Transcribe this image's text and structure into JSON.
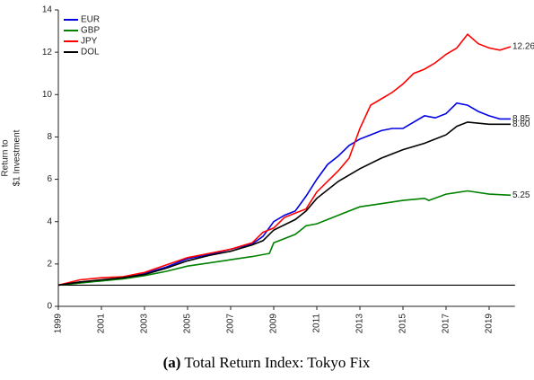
{
  "chart_data": {
    "type": "line",
    "ylabel": [
      "Return to",
      "$1 Investment"
    ],
    "caption_tag": "(a)",
    "caption": "Total Return Index: Tokyo Fix",
    "xlim": [
      1999,
      2020.2
    ],
    "xticks": [
      1999,
      2001,
      2003,
      2005,
      2007,
      2009,
      2011,
      2013,
      2015,
      2017,
      2019
    ],
    "ylim": [
      0,
      14
    ],
    "yticks": [
      0,
      2,
      4,
      6,
      8,
      10,
      12,
      14
    ],
    "hline": 1,
    "legend": "upper left",
    "series": [
      {
        "name": "EUR",
        "color": "#0000e6",
        "end_label": "8.85",
        "x": [
          1999,
          2000,
          2001,
          2002,
          2003,
          2004,
          2005,
          2006,
          2007,
          2008,
          2008.5,
          2009,
          2009.5,
          2010,
          2010.5,
          2011,
          2011.5,
          2012,
          2012.5,
          2013,
          2013.5,
          2014,
          2014.5,
          2015,
          2015.5,
          2016,
          2016.5,
          2017,
          2017.5,
          2018,
          2018.5,
          2019,
          2019.5,
          2020
        ],
        "values": [
          1.0,
          1.15,
          1.2,
          1.35,
          1.55,
          1.85,
          2.25,
          2.45,
          2.7,
          2.95,
          3.3,
          4.0,
          4.3,
          4.5,
          5.2,
          6.0,
          6.7,
          7.1,
          7.6,
          7.9,
          8.1,
          8.3,
          8.4,
          8.4,
          8.7,
          9.0,
          8.9,
          9.1,
          9.6,
          9.5,
          9.2,
          9.0,
          8.85,
          8.85
        ]
      },
      {
        "name": "GBP",
        "color": "#008000",
        "end_label": "5.25",
        "x": [
          1999,
          2000,
          2001,
          2002,
          2003,
          2004,
          2005,
          2006,
          2007,
          2008,
          2008.8,
          2009,
          2010,
          2010.5,
          2011,
          2012,
          2013,
          2014,
          2015,
          2016,
          2016.2,
          2017,
          2018,
          2019,
          2020
        ],
        "values": [
          1.0,
          1.1,
          1.2,
          1.3,
          1.45,
          1.65,
          1.9,
          2.05,
          2.2,
          2.35,
          2.5,
          3.0,
          3.4,
          3.8,
          3.9,
          4.3,
          4.7,
          4.85,
          5.0,
          5.1,
          5.0,
          5.3,
          5.45,
          5.3,
          5.25
        ]
      },
      {
        "name": "JPY",
        "color": "#ff0000",
        "end_label": "12.26",
        "x": [
          1999,
          2000,
          2001,
          2002,
          2003,
          2004,
          2005,
          2006,
          2007,
          2008,
          2008.5,
          2009,
          2009.5,
          2010,
          2010.5,
          2011,
          2012,
          2012.5,
          2013,
          2013.5,
          2014,
          2014.5,
          2015,
          2015.5,
          2016,
          2016.5,
          2017,
          2017.5,
          2018,
          2018.5,
          2019,
          2019.5,
          2020
        ],
        "values": [
          1.0,
          1.25,
          1.35,
          1.4,
          1.6,
          1.95,
          2.3,
          2.5,
          2.7,
          3.0,
          3.5,
          3.7,
          4.2,
          4.4,
          4.6,
          5.4,
          6.4,
          7.0,
          8.4,
          9.5,
          9.8,
          10.1,
          10.5,
          11.0,
          11.2,
          11.5,
          11.9,
          12.2,
          12.85,
          12.4,
          12.2,
          12.1,
          12.26
        ]
      },
      {
        "name": "DOL",
        "color": "#000000",
        "end_label": "8.60",
        "x": [
          1999,
          2000,
          2001,
          2002,
          2003,
          2004,
          2005,
          2006,
          2007,
          2008,
          2008.5,
          2009,
          2010,
          2010.5,
          2011,
          2012,
          2013,
          2014,
          2015,
          2016,
          2016.5,
          2017,
          2017.5,
          2018,
          2019,
          2020
        ],
        "values": [
          1.0,
          1.15,
          1.25,
          1.35,
          1.5,
          1.8,
          2.15,
          2.4,
          2.6,
          2.9,
          3.1,
          3.6,
          4.1,
          4.5,
          5.1,
          5.9,
          6.5,
          7.0,
          7.4,
          7.7,
          7.9,
          8.1,
          8.5,
          8.7,
          8.6,
          8.6
        ]
      }
    ]
  }
}
